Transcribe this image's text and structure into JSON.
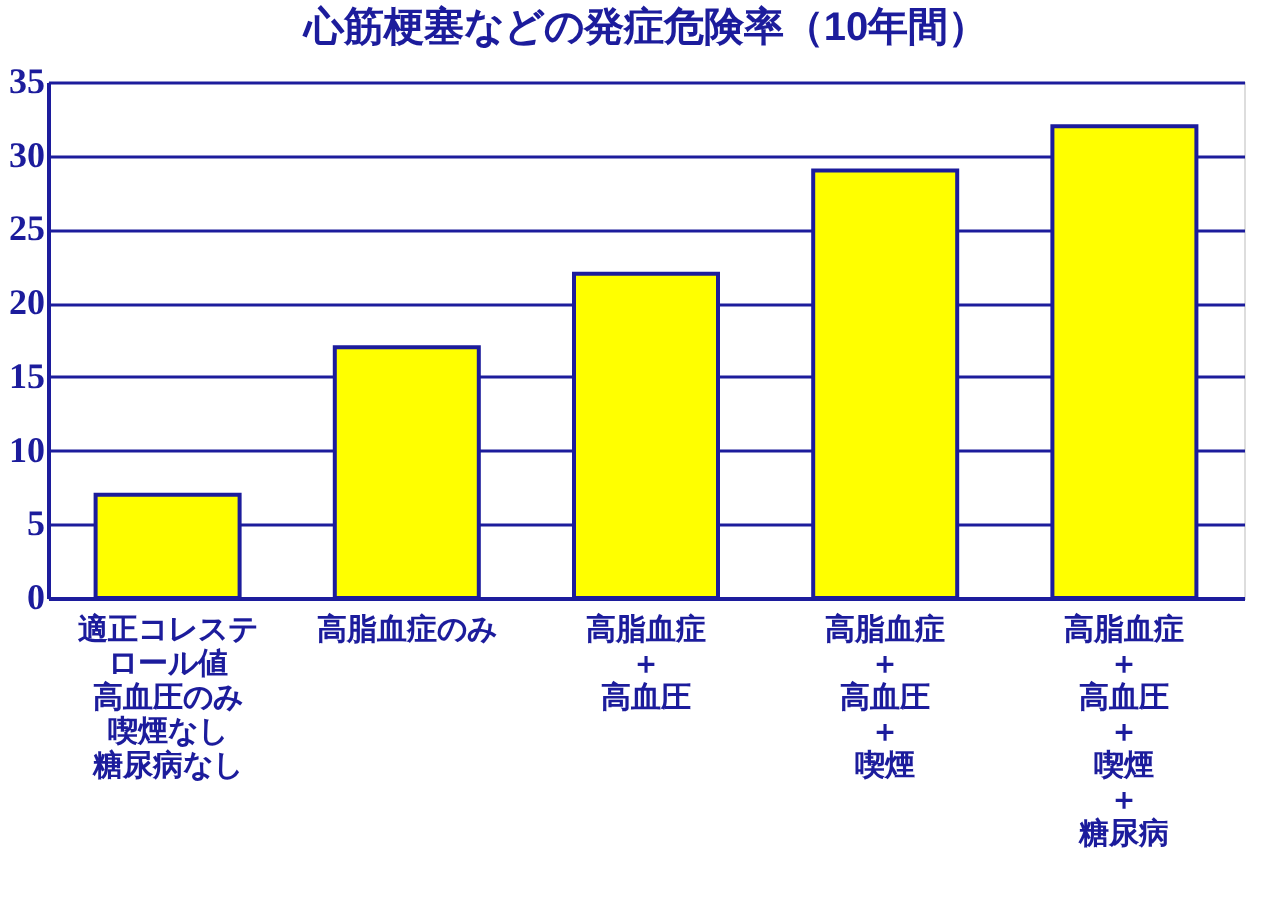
{
  "chart_data": {
    "type": "bar",
    "title": "心筋梗塞などの発症危険率（10年間）",
    "categories": [
      "適正コレステロール値高血圧のみ喫煙なし糖尿病なし",
      "高脂血症のみ",
      "高脂血症＋高血圧",
      "高脂血症＋高血圧＋喫煙",
      "高脂血症＋高血圧＋喫煙＋糖尿病"
    ],
    "values": [
      7,
      17,
      22,
      29,
      32
    ],
    "color": "#ffff00",
    "ylim": [
      0,
      35
    ],
    "yticks": [
      0,
      5,
      10,
      15,
      20,
      25,
      30,
      35
    ],
    "grid": "y"
  }
}
